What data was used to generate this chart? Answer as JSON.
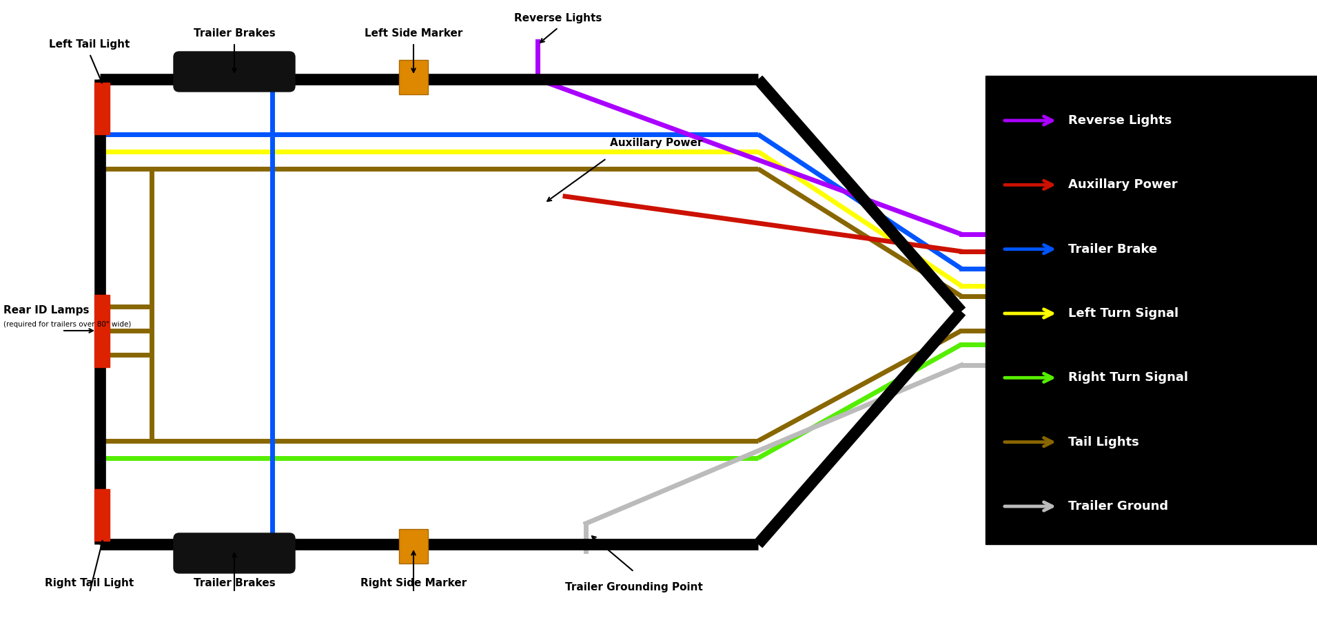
{
  "bg_color": "#ffffff",
  "wire_colors": {
    "purple": "#aa00ff",
    "red": "#cc1100",
    "blue": "#0055ff",
    "yellow": "#ffff00",
    "green": "#55ee00",
    "brown": "#886600",
    "gray": "#bbbbbb"
  },
  "legend_entries": [
    {
      "label": "Reverse Lights",
      "color": "#aa00ff"
    },
    {
      "label": "Auxillary Power",
      "color": "#cc1100"
    },
    {
      "label": "Trailer Brake",
      "color": "#0055ff"
    },
    {
      "label": "Left Turn Signal",
      "color": "#ffff00"
    },
    {
      "label": "Right Turn Signal",
      "color": "#55ee00"
    },
    {
      "label": "Tail Lights",
      "color": "#886600"
    },
    {
      "label": "Trailer Ground",
      "color": "#bbbbbb"
    }
  ]
}
